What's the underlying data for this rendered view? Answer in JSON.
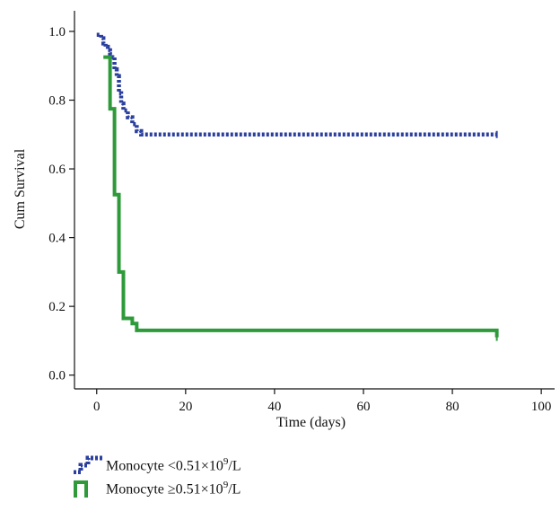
{
  "chart_data": {
    "type": "line",
    "step": true,
    "xlabel": "Time (days)",
    "ylabel": "Cum Survival",
    "xlim": [
      -5,
      103
    ],
    "ylim": [
      -0.04,
      1.06
    ],
    "xticks": [
      0,
      20,
      40,
      60,
      80,
      100
    ],
    "yticks": [
      0.0,
      0.2,
      0.4,
      0.6,
      0.8,
      1.0
    ],
    "xtick_labels": [
      "0",
      "20",
      "40",
      "60",
      "80",
      "100"
    ],
    "ytick_labels": [
      "0.0",
      "0.2",
      "0.4",
      "0.6",
      "0.8",
      "1.0"
    ],
    "grid": false,
    "legend_position": "bottom-left",
    "series": [
      {
        "name": "Monocyte <0.51×10⁹/L",
        "label_prefix": "Monocyte <0.51×10",
        "label_exp": "9",
        "label_suffix": "/L",
        "color": "#2a3f9e",
        "style": "dotted",
        "x": [
          0,
          1,
          1.5,
          2,
          2.5,
          3,
          3.5,
          4,
          4.5,
          5,
          5.5,
          6,
          7,
          8,
          9,
          10,
          90
        ],
        "y": [
          0.99,
          0.98,
          0.965,
          0.955,
          0.945,
          0.935,
          0.925,
          0.89,
          0.87,
          0.82,
          0.79,
          0.77,
          0.75,
          0.73,
          0.71,
          0.7,
          0.7
        ]
      },
      {
        "name": "Monocyte ≥0.51×10⁹/L",
        "label_prefix": "Monocyte ≥0.51×10",
        "label_exp": "9",
        "label_suffix": "/L",
        "color": "#2e9a3a",
        "style": "solid",
        "x": [
          1.5,
          3,
          4,
          5,
          6,
          8,
          9,
          90
        ],
        "y": [
          0.925,
          0.775,
          0.525,
          0.3,
          0.165,
          0.15,
          0.13,
          0.11
        ]
      }
    ]
  }
}
